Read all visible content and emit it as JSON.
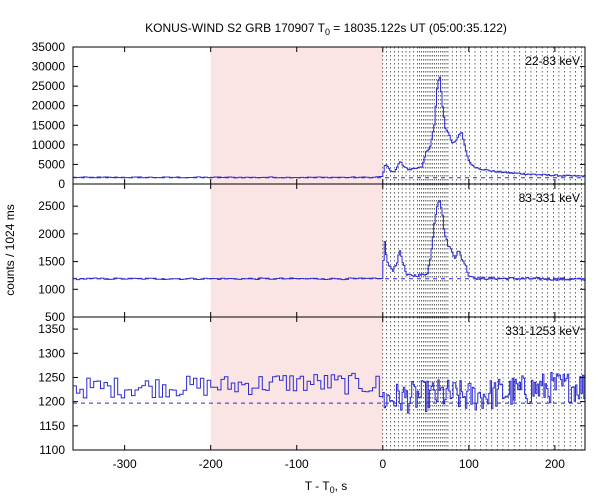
{
  "chart_data": {
    "type": "line",
    "title": "KONUS-WIND S2 GRB 170907 T",
    "title_sub": "0",
    "title_rest": " = 18035.122s UT (05:00:35.122)",
    "xlabel": "T - T",
    "xlabel_sub": "0",
    "xlabel_rest": ", s",
    "ylabel": "counts / 1024 ms",
    "xlim": [
      -360,
      235
    ],
    "xticks": [
      -300,
      -200,
      -100,
      0,
      100,
      200
    ],
    "xtick_labels": [
      "-300",
      "-200",
      "-100",
      "0",
      "100",
      "200"
    ],
    "shaded_region": [
      -200,
      0
    ],
    "colors": {
      "series": "#2b2bd0",
      "shade": "#fbe4e4",
      "background_level": "#2b2bd0",
      "grid": "#000000"
    },
    "dotted_lines_start": 0,
    "dotted_lines_end": 235,
    "panels": [
      {
        "name": "22-83 keV",
        "ylim": [
          0,
          35000
        ],
        "yticks": [
          0,
          5000,
          10000,
          15000,
          20000,
          25000,
          30000,
          35000
        ],
        "ytick_labels": [
          "0",
          "5000",
          "10000",
          "15000",
          "20000",
          "25000",
          "30000",
          "35000"
        ],
        "background": 1600,
        "keypoints": [
          [
            -360,
            1700
          ],
          [
            -10,
            1700
          ],
          [
            0,
            2000
          ],
          [
            3,
            5300
          ],
          [
            8,
            3500
          ],
          [
            14,
            3000
          ],
          [
            20,
            5800
          ],
          [
            25,
            4500
          ],
          [
            30,
            3600
          ],
          [
            40,
            4200
          ],
          [
            46,
            4200
          ],
          [
            50,
            8000
          ],
          [
            55,
            9500
          ],
          [
            60,
            15000
          ],
          [
            63,
            24000
          ],
          [
            66,
            28000
          ],
          [
            70,
            19000
          ],
          [
            73,
            14000
          ],
          [
            77,
            13000
          ],
          [
            80,
            10500
          ],
          [
            85,
            11000
          ],
          [
            88,
            12500
          ],
          [
            92,
            13000
          ],
          [
            96,
            9000
          ],
          [
            100,
            6000
          ],
          [
            105,
            4500
          ],
          [
            115,
            3800
          ],
          [
            130,
            3200
          ],
          [
            150,
            2800
          ],
          [
            180,
            2400
          ],
          [
            210,
            2100
          ],
          [
            235,
            2000
          ]
        ],
        "noise": 200
      },
      {
        "name": "83-331 keV",
        "ylim": [
          500,
          2900
        ],
        "yticks": [
          500,
          1000,
          1500,
          2000,
          2500
        ],
        "ytick_labels": [
          "500",
          "1000",
          "1500",
          "2000",
          "2500"
        ],
        "background": 1190,
        "keypoints": [
          [
            -360,
            1190
          ],
          [
            -2,
            1190
          ],
          [
            0,
            1300
          ],
          [
            2,
            1900
          ],
          [
            5,
            1500
          ],
          [
            8,
            1400
          ],
          [
            12,
            1350
          ],
          [
            17,
            1500
          ],
          [
            20,
            1700
          ],
          [
            24,
            1450
          ],
          [
            28,
            1250
          ],
          [
            35,
            1250
          ],
          [
            48,
            1260
          ],
          [
            52,
            1300
          ],
          [
            56,
            1600
          ],
          [
            60,
            2200
          ],
          [
            63,
            2500
          ],
          [
            66,
            2650
          ],
          [
            69,
            2400
          ],
          [
            72,
            2000
          ],
          [
            76,
            1800
          ],
          [
            80,
            1700
          ],
          [
            84,
            1580
          ],
          [
            88,
            1700
          ],
          [
            92,
            1550
          ],
          [
            96,
            1450
          ],
          [
            100,
            1250
          ],
          [
            110,
            1200
          ],
          [
            235,
            1180
          ]
        ],
        "noise": 25
      },
      {
        "name": "331-1253 keV",
        "ylim": [
          1100,
          1375
        ],
        "yticks": [
          1100,
          1150,
          1200,
          1250,
          1300,
          1350
        ],
        "ytick_labels": [
          "1100",
          "1150",
          "1200",
          "1250",
          "1300",
          "1350"
        ],
        "background": 1197,
        "keypoints": [
          [
            -360,
            1228
          ],
          [
            -200,
            1232
          ],
          [
            -100,
            1240
          ],
          [
            -5,
            1235
          ],
          [
            0,
            1205
          ],
          [
            40,
            1210
          ],
          [
            70,
            1215
          ],
          [
            100,
            1210
          ],
          [
            150,
            1220
          ],
          [
            200,
            1230
          ],
          [
            235,
            1232
          ]
        ],
        "noise": 22
      }
    ]
  }
}
